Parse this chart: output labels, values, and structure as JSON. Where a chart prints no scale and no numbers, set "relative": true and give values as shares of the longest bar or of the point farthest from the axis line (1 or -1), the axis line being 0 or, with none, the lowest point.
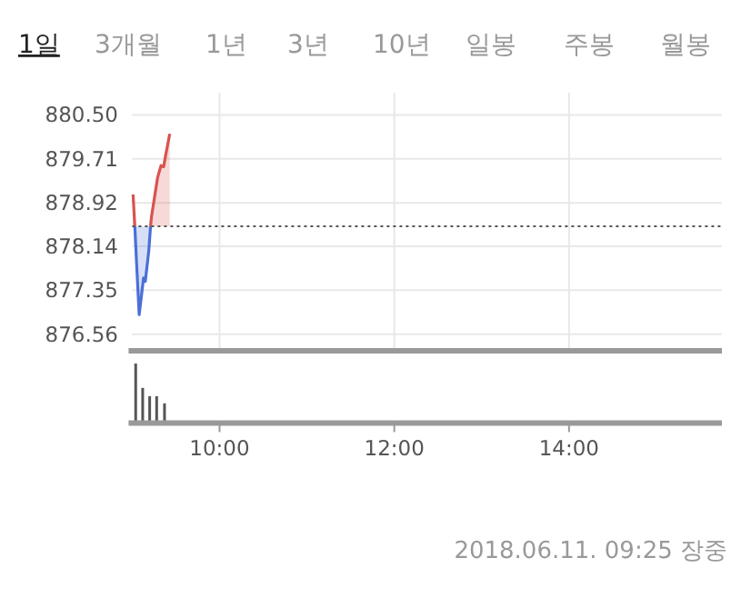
{
  "chart_data": [
    {
      "type": "area",
      "annotations": [
        "1일",
        "3개월",
        "1년",
        "3년",
        "10년",
        "일봉",
        "주봉",
        "월봉",
        "2018.06.11. 09:25 장중"
      ],
      "series": [
        {
          "color": "#d9534f",
          "x": [
            9.01,
            9.03
          ],
          "values": [
            879.07,
            878.5
          ]
        },
        {
          "color": "#4a6fd8",
          "x": [
            9.03,
            9.05,
            9.08,
            9.13,
            9.15,
            9.19,
            9.21
          ],
          "values": [
            878.5,
            877.84,
            876.91,
            877.57,
            877.51,
            878.06,
            878.5
          ]
        },
        {
          "color": "#d9534f",
          "x": [
            9.21,
            9.22,
            9.29,
            9.33,
            9.36,
            9.38,
            9.43
          ],
          "values": [
            878.5,
            878.66,
            879.37,
            879.59,
            879.57,
            879.75,
            880.16
          ]
        }
      ],
      "ref_lines": [
        {
          "axis": "y",
          "value": 878.5,
          "line_style": "dotted",
          "color": "#555555"
        }
      ],
      "xlim": [
        9,
        15.75
      ],
      "xticks": [
        {
          "value": 10,
          "label": null
        },
        {
          "value": 12,
          "label": null
        },
        {
          "value": 14,
          "label": null
        }
      ],
      "ylim": [
        876.26,
        880.9
      ],
      "yticks": [
        876.56,
        877.35,
        878.14,
        878.92,
        879.71,
        {
          "value": 880.5,
          "label": "880.50"
        }
      ],
      "grid": true,
      "tick_labels": "y"
    },
    {
      "type": "bar",
      "relative": true,
      "x": [
        9.04,
        9.12,
        9.2,
        9.28,
        9.37
      ],
      "values": [
        1,
        0.59,
        0.45,
        0.45,
        0.33
      ],
      "color": "#555555",
      "xlim": [
        9,
        15.75
      ],
      "xticks": [
        {
          "value": 10,
          "label": "10:00"
        },
        {
          "value": 12,
          "label": "12:00"
        },
        {
          "value": 14,
          "label": "14:00"
        }
      ],
      "tick_labels": "x"
    }
  ]
}
